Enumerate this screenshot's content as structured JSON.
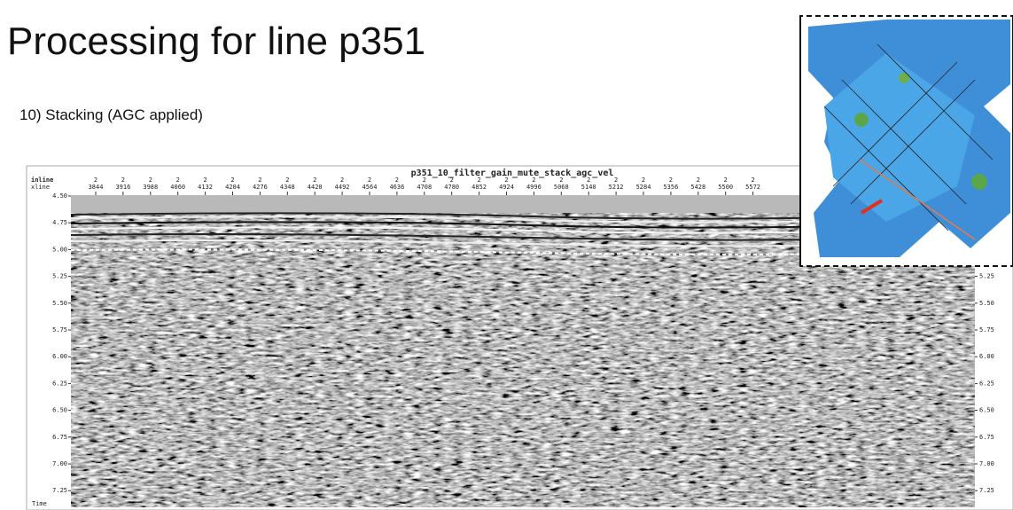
{
  "header": {
    "title": "Processing for line p351",
    "subtitle": "10) Stacking (AGC applied)"
  },
  "section": {
    "title": "p351_10_filter_gain_mute_stack_agc_vel",
    "inline_label": "inline",
    "xline_label": "xline",
    "time_label": "Time",
    "columns": [
      {
        "inline": "2",
        "xline": "3844"
      },
      {
        "inline": "2",
        "xline": "3916"
      },
      {
        "inline": "2",
        "xline": "3988"
      },
      {
        "inline": "2",
        "xline": "4060"
      },
      {
        "inline": "2",
        "xline": "4132"
      },
      {
        "inline": "2",
        "xline": "4204"
      },
      {
        "inline": "2",
        "xline": "4276"
      },
      {
        "inline": "2",
        "xline": "4348"
      },
      {
        "inline": "2",
        "xline": "4420"
      },
      {
        "inline": "2",
        "xline": "4492"
      },
      {
        "inline": "2",
        "xline": "4564"
      },
      {
        "inline": "2",
        "xline": "4636"
      },
      {
        "inline": "2",
        "xline": "4708"
      },
      {
        "inline": "2",
        "xline": "4780"
      },
      {
        "inline": "2",
        "xline": "4852"
      },
      {
        "inline": "2",
        "xline": "4924"
      },
      {
        "inline": "2",
        "xline": "4996"
      },
      {
        "inline": "2",
        "xline": "5068"
      },
      {
        "inline": "2",
        "xline": "5140"
      },
      {
        "inline": "2",
        "xline": "5212"
      },
      {
        "inline": "2",
        "xline": "5284"
      },
      {
        "inline": "2",
        "xline": "5356"
      },
      {
        "inline": "2",
        "xline": "5428"
      },
      {
        "inline": "2",
        "xline": "5500"
      },
      {
        "inline": "2",
        "xline": "5572"
      }
    ],
    "time_left": [
      "4.50",
      "4.75",
      "5.00",
      "5.25",
      "5.50",
      "5.75",
      "6.00",
      "6.25",
      "6.50",
      "6.75",
      "7.00",
      "7.25"
    ],
    "time_right": [
      "5.25",
      "5.50",
      "5.75",
      "6.00",
      "6.25",
      "6.50",
      "6.75",
      "7.00",
      "7.25"
    ]
  }
}
